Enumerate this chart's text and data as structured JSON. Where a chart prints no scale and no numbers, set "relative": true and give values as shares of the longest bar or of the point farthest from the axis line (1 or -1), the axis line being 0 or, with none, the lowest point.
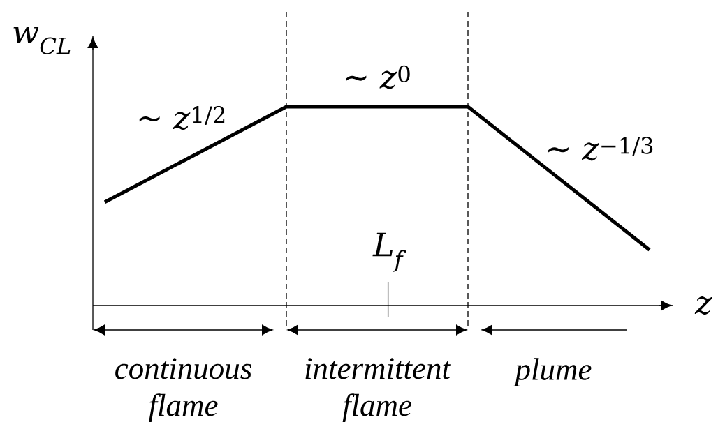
{
  "chart_data": {
    "type": "line",
    "relative": true,
    "categories": [
      null,
      null,
      null,
      null
    ],
    "values": [
      0.52,
      1,
      1,
      0.28
    ],
    "color": "#000000",
    "xlabel": "z",
    "ylabel": "w$_{CL}$",
    "annotations": [
      "∼ *z*$^{1/2}$",
      "∼ *z*$^{0}$",
      "∼ *z*$^{−1/3}$",
      "L$_{f}$",
      "continuous flame",
      "intermittent flame",
      "plume"
    ]
  }
}
